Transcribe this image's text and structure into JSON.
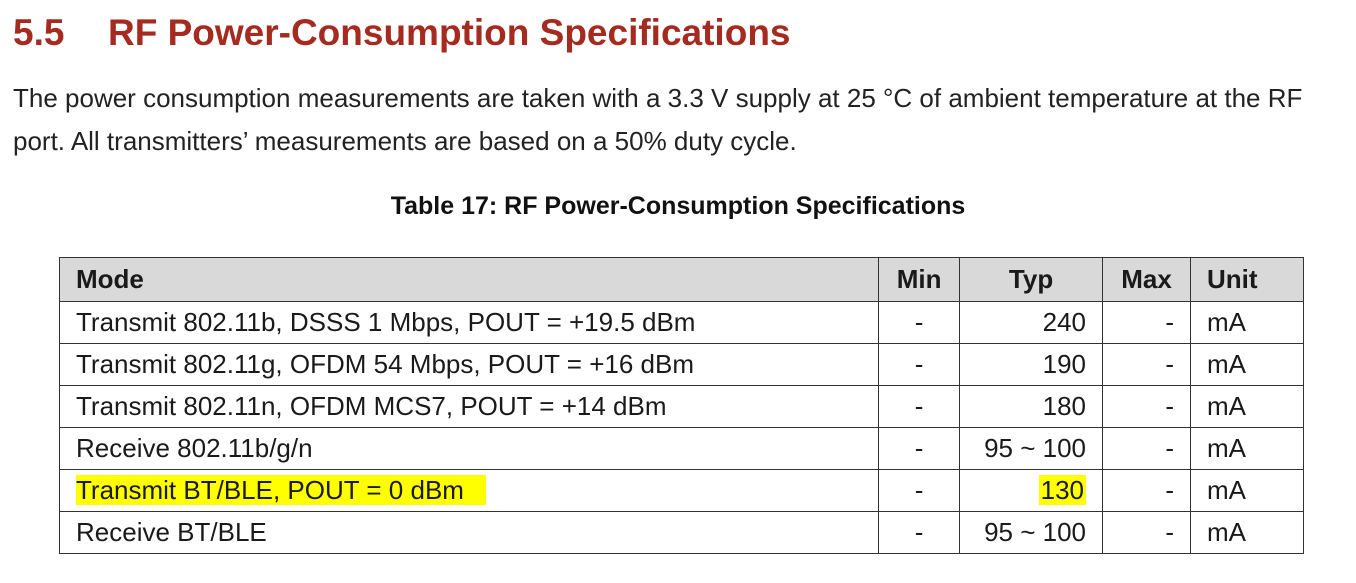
{
  "section": {
    "number": "5.5",
    "title": "RF Power-Consumption Specifications"
  },
  "paragraph": "The power consumption measurements are taken with a 3.3 V supply at 25 °C of ambient temperature at the RF port. All transmitters’ measurements are based on a 50% duty cycle.",
  "table": {
    "caption": "Table 17: RF Power-Consumption Specifications",
    "headers": [
      "Mode",
      "Min",
      "Typ",
      "Max",
      "Unit"
    ],
    "rows": [
      {
        "mode": "Transmit 802.11b, DSSS 1 Mbps, POUT = +19.5 dBm",
        "min": "-",
        "typ": "240",
        "max": "-",
        "unit": "mA"
      },
      {
        "mode": "Transmit 802.11g, OFDM 54 Mbps, POUT = +16 dBm",
        "min": "-",
        "typ": "190",
        "max": "-",
        "unit": "mA"
      },
      {
        "mode": "Transmit 802.11n, OFDM MCS7, POUT = +14 dBm",
        "min": "-",
        "typ": "180",
        "max": "-",
        "unit": "mA"
      },
      {
        "mode": "Receive 802.11b/g/n",
        "min": "-",
        "typ": "95 ~ 100",
        "max": "-",
        "unit": "mA"
      },
      {
        "mode": "Transmit BT/BLE, POUT = 0 dBm",
        "min": "-",
        "typ": "130",
        "max": "-",
        "unit": "mA"
      },
      {
        "mode": "Receive BT/BLE",
        "min": "-",
        "typ": "95 ~ 100",
        "max": "-",
        "unit": "mA"
      }
    ]
  },
  "highlight_color": "#ffff00",
  "heading_color": "#a52a1f"
}
